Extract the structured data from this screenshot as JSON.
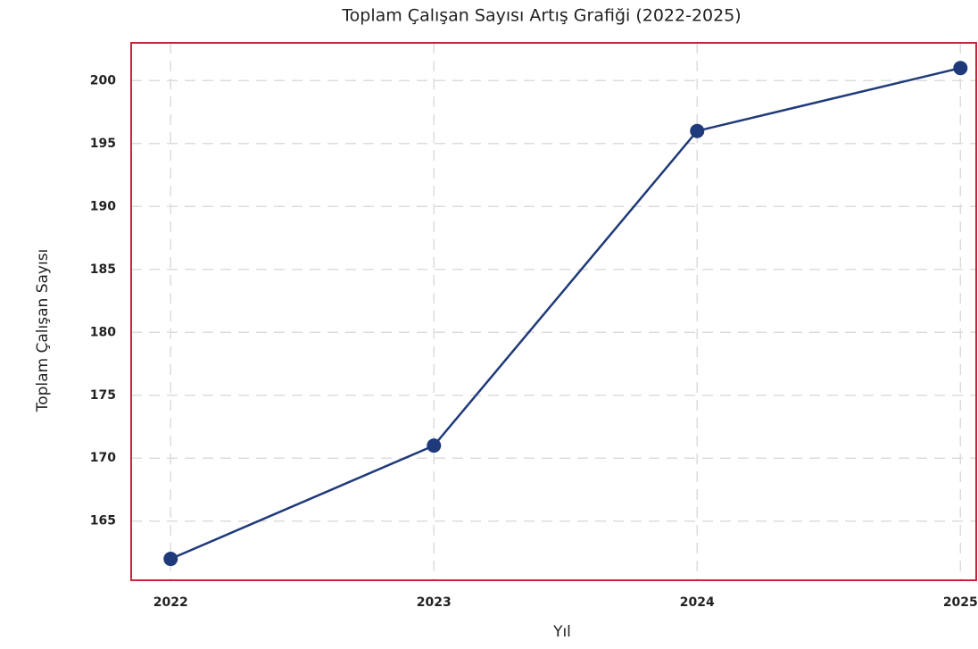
{
  "chart_data": {
    "type": "line",
    "title": "Toplam Çalışan Sayısı Artış Grafiği (2022-2025)",
    "x_label": "Yıl",
    "y_label": "Toplam Çalışan Sayısı",
    "x": [
      2022,
      2023,
      2024,
      2025
    ],
    "series": [
      {
        "name": "Toplam Çalışan Sayısı",
        "color": "#1f3a7a",
        "values": [
          162,
          171,
          196,
          201
        ]
      }
    ],
    "xlim": [
      2021.85,
      2025.06
    ],
    "xticks": [
      2022,
      2023,
      2024,
      2025
    ],
    "ylim": [
      160.3,
      203
    ],
    "yticks": [
      165,
      170,
      175,
      180,
      185,
      190,
      195,
      200
    ],
    "grid": true,
    "frame_color": "#c8243c"
  }
}
